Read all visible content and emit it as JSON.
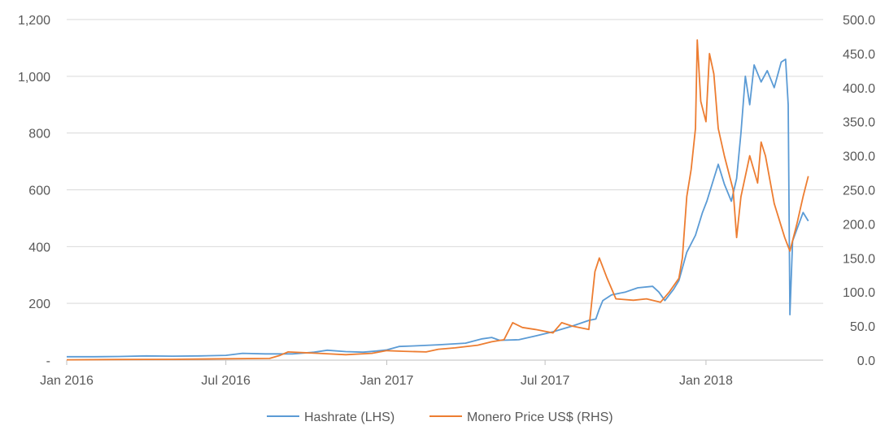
{
  "chart_data": {
    "type": "line",
    "title": "",
    "legend": {
      "placement": "bottom"
    },
    "grid": true,
    "x_axis": {
      "range": [
        "2016-01-01",
        "2018-05-15"
      ],
      "ticks": [
        {
          "date": "2016-01-01",
          "label": "Jan 2016"
        },
        {
          "date": "2016-07-01",
          "label": "Jul 2016"
        },
        {
          "date": "2017-01-01",
          "label": "Jan 2017"
        },
        {
          "date": "2017-07-01",
          "label": "Jul 2017"
        },
        {
          "date": "2018-01-01",
          "label": "Jan 2018"
        }
      ]
    },
    "y_left": {
      "range": [
        0,
        1200
      ],
      "ticks": [
        {
          "value": 0,
          "label": "-"
        },
        {
          "value": 200,
          "label": "200"
        },
        {
          "value": 400,
          "label": "400"
        },
        {
          "value": 600,
          "label": "600"
        },
        {
          "value": 800,
          "label": "800"
        },
        {
          "value": 1000,
          "label": "1,000"
        },
        {
          "value": 1200,
          "label": "1,200"
        }
      ]
    },
    "y_right": {
      "range": [
        0,
        500
      ],
      "ticks": [
        {
          "value": 0,
          "label": "0.0"
        },
        {
          "value": 50,
          "label": "50.0"
        },
        {
          "value": 100,
          "label": "100.0"
        },
        {
          "value": 150,
          "label": "150.0"
        },
        {
          "value": 200,
          "label": "200.0"
        },
        {
          "value": 250,
          "label": "250.0"
        },
        {
          "value": 300,
          "label": "300.0"
        },
        {
          "value": 350,
          "label": "350.0"
        },
        {
          "value": 400,
          "label": "400.0"
        },
        {
          "value": 450,
          "label": "450.0"
        },
        {
          "value": 500,
          "label": "500.0"
        }
      ]
    },
    "series": [
      {
        "name": "Hashrate (LHS)",
        "axis": "left",
        "color": "#5B9BD5",
        "points": [
          [
            "2016-01-01",
            12
          ],
          [
            "2016-02-01",
            12
          ],
          [
            "2016-03-01",
            13
          ],
          [
            "2016-04-01",
            15
          ],
          [
            "2016-05-01",
            14
          ],
          [
            "2016-06-01",
            15
          ],
          [
            "2016-07-01",
            17
          ],
          [
            "2016-07-20",
            24
          ],
          [
            "2016-08-15",
            22
          ],
          [
            "2016-09-15",
            22
          ],
          [
            "2016-10-10",
            28
          ],
          [
            "2016-10-25",
            35
          ],
          [
            "2016-11-15",
            30
          ],
          [
            "2016-12-05",
            28
          ],
          [
            "2016-12-20",
            32
          ],
          [
            "2017-01-01",
            36
          ],
          [
            "2017-01-15",
            48
          ],
          [
            "2017-02-01",
            50
          ],
          [
            "2017-03-01",
            54
          ],
          [
            "2017-04-01",
            60
          ],
          [
            "2017-04-20",
            75
          ],
          [
            "2017-05-01",
            80
          ],
          [
            "2017-05-10",
            70
          ],
          [
            "2017-06-01",
            72
          ],
          [
            "2017-06-20",
            85
          ],
          [
            "2017-07-10",
            100
          ],
          [
            "2017-08-01",
            120
          ],
          [
            "2017-08-20",
            140
          ],
          [
            "2017-08-28",
            145
          ],
          [
            "2017-09-01",
            180
          ],
          [
            "2017-09-05",
            210
          ],
          [
            "2017-09-15",
            230
          ],
          [
            "2017-10-01",
            240
          ],
          [
            "2017-10-15",
            255
          ],
          [
            "2017-11-01",
            260
          ],
          [
            "2017-11-08",
            240
          ],
          [
            "2017-11-15",
            210
          ],
          [
            "2017-11-25",
            250
          ],
          [
            "2017-12-01",
            280
          ],
          [
            "2017-12-10",
            380
          ],
          [
            "2017-12-20",
            440
          ],
          [
            "2017-12-28",
            520
          ],
          [
            "2018-01-02",
            560
          ],
          [
            "2018-01-10",
            640
          ],
          [
            "2018-01-15",
            690
          ],
          [
            "2018-01-22",
            620
          ],
          [
            "2018-01-30",
            560
          ],
          [
            "2018-02-05",
            640
          ],
          [
            "2018-02-10",
            800
          ],
          [
            "2018-02-15",
            1000
          ],
          [
            "2018-02-20",
            900
          ],
          [
            "2018-02-25",
            1040
          ],
          [
            "2018-03-05",
            980
          ],
          [
            "2018-03-12",
            1020
          ],
          [
            "2018-03-20",
            960
          ],
          [
            "2018-03-28",
            1050
          ],
          [
            "2018-04-02",
            1060
          ],
          [
            "2018-04-05",
            900
          ],
          [
            "2018-04-07",
            160
          ],
          [
            "2018-04-10",
            420
          ],
          [
            "2018-04-16",
            470
          ],
          [
            "2018-04-22",
            520
          ],
          [
            "2018-04-28",
            490
          ]
        ]
      },
      {
        "name": "Monero Price US$ (RHS)",
        "axis": "right",
        "color": "#ED7D31",
        "points": [
          [
            "2016-01-01",
            0.5
          ],
          [
            "2016-03-01",
            1
          ],
          [
            "2016-05-01",
            1.2
          ],
          [
            "2016-07-01",
            2
          ],
          [
            "2016-08-20",
            2.5
          ],
          [
            "2016-09-01",
            7
          ],
          [
            "2016-09-10",
            12
          ],
          [
            "2016-10-15",
            10
          ],
          [
            "2016-11-15",
            8
          ],
          [
            "2016-12-15",
            10
          ],
          [
            "2017-01-01",
            14
          ],
          [
            "2017-01-20",
            13
          ],
          [
            "2017-02-15",
            12
          ],
          [
            "2017-03-01",
            16
          ],
          [
            "2017-03-20",
            18
          ],
          [
            "2017-04-15",
            22
          ],
          [
            "2017-05-01",
            27
          ],
          [
            "2017-05-15",
            30
          ],
          [
            "2017-05-25",
            55
          ],
          [
            "2017-06-05",
            48
          ],
          [
            "2017-06-20",
            45
          ],
          [
            "2017-07-10",
            40
          ],
          [
            "2017-07-20",
            55
          ],
          [
            "2017-08-01",
            50
          ],
          [
            "2017-08-20",
            45
          ],
          [
            "2017-08-27",
            130
          ],
          [
            "2017-09-01",
            150
          ],
          [
            "2017-09-10",
            120
          ],
          [
            "2017-09-20",
            90
          ],
          [
            "2017-10-10",
            88
          ],
          [
            "2017-10-25",
            90
          ],
          [
            "2017-11-10",
            85
          ],
          [
            "2017-11-20",
            100
          ],
          [
            "2017-12-01",
            120
          ],
          [
            "2017-12-05",
            150
          ],
          [
            "2017-12-10",
            240
          ],
          [
            "2017-12-15",
            280
          ],
          [
            "2017-12-20",
            340
          ],
          [
            "2017-12-22",
            470
          ],
          [
            "2017-12-26",
            380
          ],
          [
            "2018-01-01",
            350
          ],
          [
            "2018-01-05",
            450
          ],
          [
            "2018-01-10",
            420
          ],
          [
            "2018-01-15",
            340
          ],
          [
            "2018-01-22",
            300
          ],
          [
            "2018-02-01",
            250
          ],
          [
            "2018-02-05",
            180
          ],
          [
            "2018-02-10",
            240
          ],
          [
            "2018-02-20",
            300
          ],
          [
            "2018-03-01",
            260
          ],
          [
            "2018-03-05",
            320
          ],
          [
            "2018-03-10",
            300
          ],
          [
            "2018-03-20",
            230
          ],
          [
            "2018-04-01",
            180
          ],
          [
            "2018-04-07",
            160
          ],
          [
            "2018-04-15",
            200
          ],
          [
            "2018-04-22",
            240
          ],
          [
            "2018-04-28",
            270
          ]
        ]
      }
    ]
  }
}
